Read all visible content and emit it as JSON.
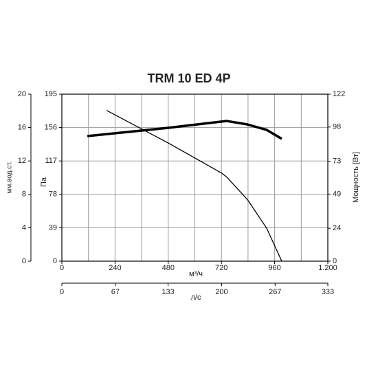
{
  "chart_data": {
    "type": "line",
    "title": "TRM 10 ED 4P",
    "x_label": "м³/ч",
    "y_label": "Па",
    "y2_label": "Мощность [Вт]",
    "xlim": [
      0,
      1200
    ],
    "xticks": [
      0,
      240,
      480,
      720,
      960,
      {
        "value": 1200,
        "label": "1.200"
      }
    ],
    "ylim": [
      0,
      195
    ],
    "yticks": [
      0,
      39,
      78,
      117,
      156,
      195
    ],
    "y2lim": [
      0,
      122
    ],
    "y2ticks": [
      0,
      24,
      49,
      73,
      98,
      122
    ],
    "mm_axis": {
      "label": "мм.вод.ст.",
      "lim": [
        0,
        20
      ],
      "ticks": [
        0,
        4,
        8,
        12,
        16,
        20
      ]
    },
    "ls_axis": {
      "label": "л/с",
      "lim": [
        0,
        333
      ],
      "ticks": [
        0,
        67,
        133,
        200,
        267,
        333
      ]
    },
    "grid": true,
    "series": [
      {
        "color": "#000000",
        "x": [
          202,
          480,
          720,
          745,
          837,
          924,
          992
        ],
        "values": [
          176,
          138,
          103,
          98,
          72,
          38.5,
          0
        ]
      },
      {
        "color": "#000000",
        "axis": "y2",
        "x": [
          115,
          480,
          744,
          837,
          924,
          992
        ],
        "values": [
          91.4,
          97.4,
          102.4,
          99.9,
          95.9,
          89.4
        ]
      }
    ]
  }
}
